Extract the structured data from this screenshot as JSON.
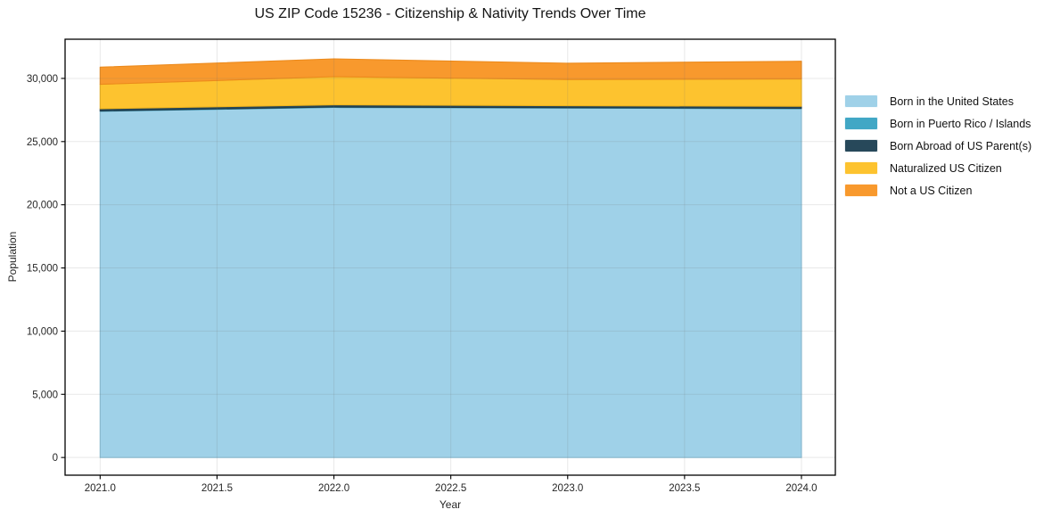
{
  "chart_data": {
    "type": "area",
    "stacked": true,
    "title": "US ZIP Code 15236 - Citizenship & Nativity Trends Over Time",
    "xlabel": "Year",
    "ylabel": "Population",
    "x": [
      2021,
      2022,
      2023,
      2024
    ],
    "series": [
      {
        "name": "Born in the United States",
        "color": "#9FD1E8",
        "edge_color": "#8CC3DC",
        "values": [
          27400,
          27700,
          27650,
          27600
        ]
      },
      {
        "name": "Born in Puerto Rico / Islands",
        "color": "#41A7C5",
        "edge_color": "#338FAD",
        "values": [
          30,
          35,
          30,
          30
        ]
      },
      {
        "name": "Born Abroad of US Parent(s)",
        "color": "#27485A",
        "edge_color": "#1E3947",
        "values": [
          170,
          175,
          160,
          165
        ]
      },
      {
        "name": "Naturalized US Citizen",
        "color": "#FDC32F",
        "edge_color": "#F0B41C",
        "values": [
          1930,
          2230,
          2070,
          2155
        ]
      },
      {
        "name": "Not a US Citizen",
        "color": "#F8992D",
        "edge_color": "#EC8A1C",
        "values": [
          1360,
          1410,
          1290,
          1410
        ]
      }
    ],
    "x_ticks": [
      2021.0,
      2021.5,
      2022.0,
      2022.5,
      2023.0,
      2023.5,
      2024.0
    ],
    "x_tick_labels": [
      "2021.0",
      "2021.5",
      "2022.0",
      "2022.5",
      "2023.0",
      "2023.5",
      "2024.0"
    ],
    "y_ticks": [
      0,
      5000,
      10000,
      15000,
      20000,
      25000,
      30000
    ],
    "y_tick_labels": [
      "0",
      "5,000",
      "10,000",
      "15,000",
      "20,000",
      "25,000",
      "30,000"
    ],
    "xlim": [
      2020.85,
      2024.145
    ],
    "ylim": [
      -1400,
      33100
    ],
    "grid": true,
    "legend_position": "right-outside",
    "plot_background": "#ffffff",
    "spine_color": "#000000",
    "tick_label_color": "#262626"
  }
}
